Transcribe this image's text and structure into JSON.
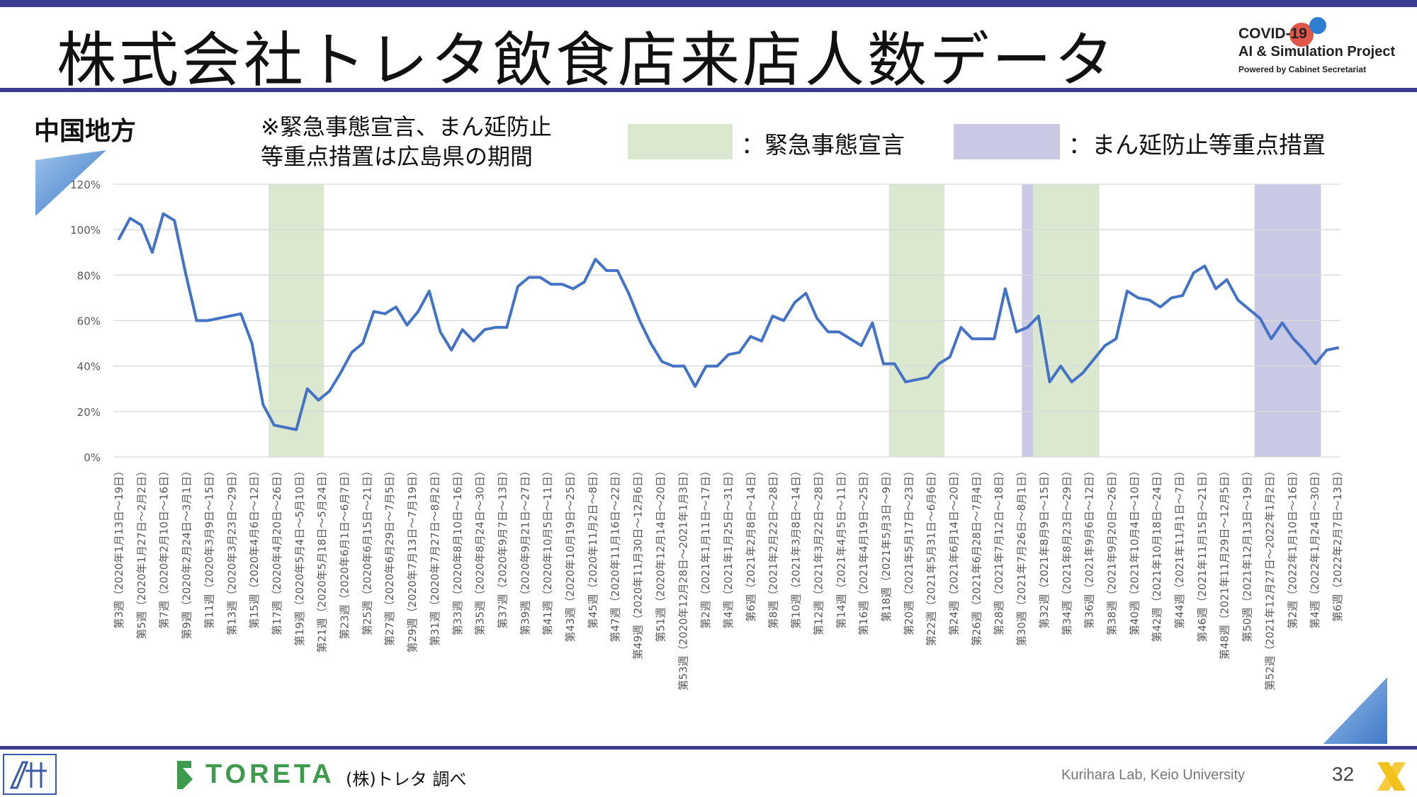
{
  "slide": {
    "title": "株式会社トレタ飲食店来店人数データ",
    "region": "中国地方",
    "note_line1": "※緊急事態宣言、まん延防止",
    "note_line2": "等重点措置は広島県の期間",
    "source": "(株)トレタ 調べ",
    "brand": "TORETA",
    "credit": "Kurihara Lab, Keio University",
    "page_number": "32",
    "logo_line1": "COVID-19",
    "logo_line2": "AI & Simulation Project",
    "logo_line3": "Powered by Cabinet Secretariat"
  },
  "legend": [
    {
      "label": "：緊急事態宣言",
      "color": "#d9e8cf"
    },
    {
      "label": "：まん延防止等重点措置",
      "color": "#c9c9e6"
    }
  ],
  "colors": {
    "line": "#4472c4",
    "accent": "#3b3b8f",
    "emergency": "#d9e8cf",
    "priority": "#c9c9e6",
    "grid": "#d9d9d9"
  },
  "chart_data": {
    "type": "line",
    "ylim": [
      0,
      120
    ],
    "y_ticks": [
      "0%",
      "20%",
      "40%",
      "60%",
      "80%",
      "100%",
      "120%"
    ],
    "grid": true,
    "x_labels": [
      "第3週（2020年1月13日～19日）",
      "第5週（2020年1月27日～2月2日）",
      "第7週（2020年2月10日～16日）",
      "第9週（2020年2月24日～3月1日）",
      "第11週（2020年3月9日～15日）",
      "第13週（2020年3月23日～29日）",
      "第15週（2020年4月6日～12日）",
      "第17週（2020年4月20日～26日）",
      "第19週（2020年5月4日～5月10日）",
      "第21週（2020年5月18日～5月24日）",
      "第23週（2020年6月1日～6月7日）",
      "第25週（2020年6月15日～21日）",
      "第27週（2020年6月29日～7月5日）",
      "第29週（2020年7月13日～7月19日）",
      "第31週（2020年7月27日～8月2日）",
      "第33週（2020年8月10日～16日）",
      "第35週（2020年8月24日～30日）",
      "第37週（2020年9月7日～13日）",
      "第39週（2020年9月21日～27日）",
      "第41週（2020年10月5日～11日）",
      "第43週（2020年10月19日～25日）",
      "第45週（2020年11月2日～8日）",
      "第47週（2020年11月16日～22日）",
      "第49週（2020年11月30日～12月6日）",
      "第51週（2020年12月14日～20日）",
      "第53週（2020年12月28日～2021年1月3日）",
      "第2週（2021年1月11日～17日）",
      "第4週（2021年1月25日～31日）",
      "第6週（2021年2月8日～14日）",
      "第8週（2021年2月22日～28日）",
      "第10週（2021年3月8日～14日）",
      "第12週（2021年3月22日～28日）",
      "第14週（2021年4月5日～11日）",
      "第16週（2021年4月19日～25日）",
      "第18週（2021年5月3日～9日）",
      "第20週（2021年5月17日～23日）",
      "第22週（2021年5月31日～6月6日）",
      "第24週（2021年6月14日～20日）",
      "第26週（2021年6月28日～7月4日）",
      "第28週（2021年7月12日～18日）",
      "第30週（2021年7月26日～8月1日）",
      "第32週（2021年8月9日～15日）",
      "第34週（2021年8月23日～29日）",
      "第36週（2021年9月6日～12日）",
      "第38週（2021年9月20日～26日）",
      "第40週（2021年10月4日～10日）",
      "第42週（2021年10月18日～24日）",
      "第44週（2021年11月1日～7日）",
      "第46週（2021年11月15日～21日）",
      "第48週（2021年11月29日～12月5日）",
      "第50週（2021年12月13日～19日）",
      "第52週（2021年12月27日～2022年1月2日）",
      "第2週（2022年1月10日～16日）",
      "第4週（2022年1月24日～30日）",
      "第6週（2022年2月7日～13日）"
    ],
    "series": [
      {
        "values": [
          96,
          105,
          102,
          90,
          107,
          104,
          81,
          60,
          60,
          61,
          62,
          63,
          50,
          23,
          14,
          13,
          12,
          30,
          25,
          29,
          37,
          46,
          50,
          64,
          63,
          66,
          58,
          64,
          73,
          55,
          47,
          56,
          51,
          56,
          57,
          57,
          75,
          79,
          79,
          76,
          76,
          74,
          77,
          87,
          82,
          82,
          72,
          60,
          50,
          42,
          40,
          40,
          31,
          40,
          40,
          45,
          46,
          53,
          51,
          62,
          60,
          68,
          72,
          61,
          55,
          55,
          52,
          49,
          59,
          41,
          41,
          33,
          34,
          35,
          41,
          44,
          57,
          52,
          52,
          52,
          74,
          55,
          57,
          62,
          33,
          40,
          33,
          37,
          43,
          49,
          52,
          73,
          70,
          69,
          66,
          70,
          71,
          81,
          84,
          74,
          78,
          69,
          65,
          61,
          52,
          59,
          52,
          47,
          41,
          47,
          48
        ]
      }
    ],
    "emergency_periods": [
      {
        "start_index": 14,
        "end_index": 18
      },
      {
        "start_index": 70,
        "end_index": 74
      },
      {
        "start_index": 83,
        "end_index": 88
      }
    ],
    "priority_measure_periods": [
      {
        "start_index": 82,
        "end_index": 82
      },
      {
        "start_index": 103,
        "end_index": 108
      }
    ]
  }
}
